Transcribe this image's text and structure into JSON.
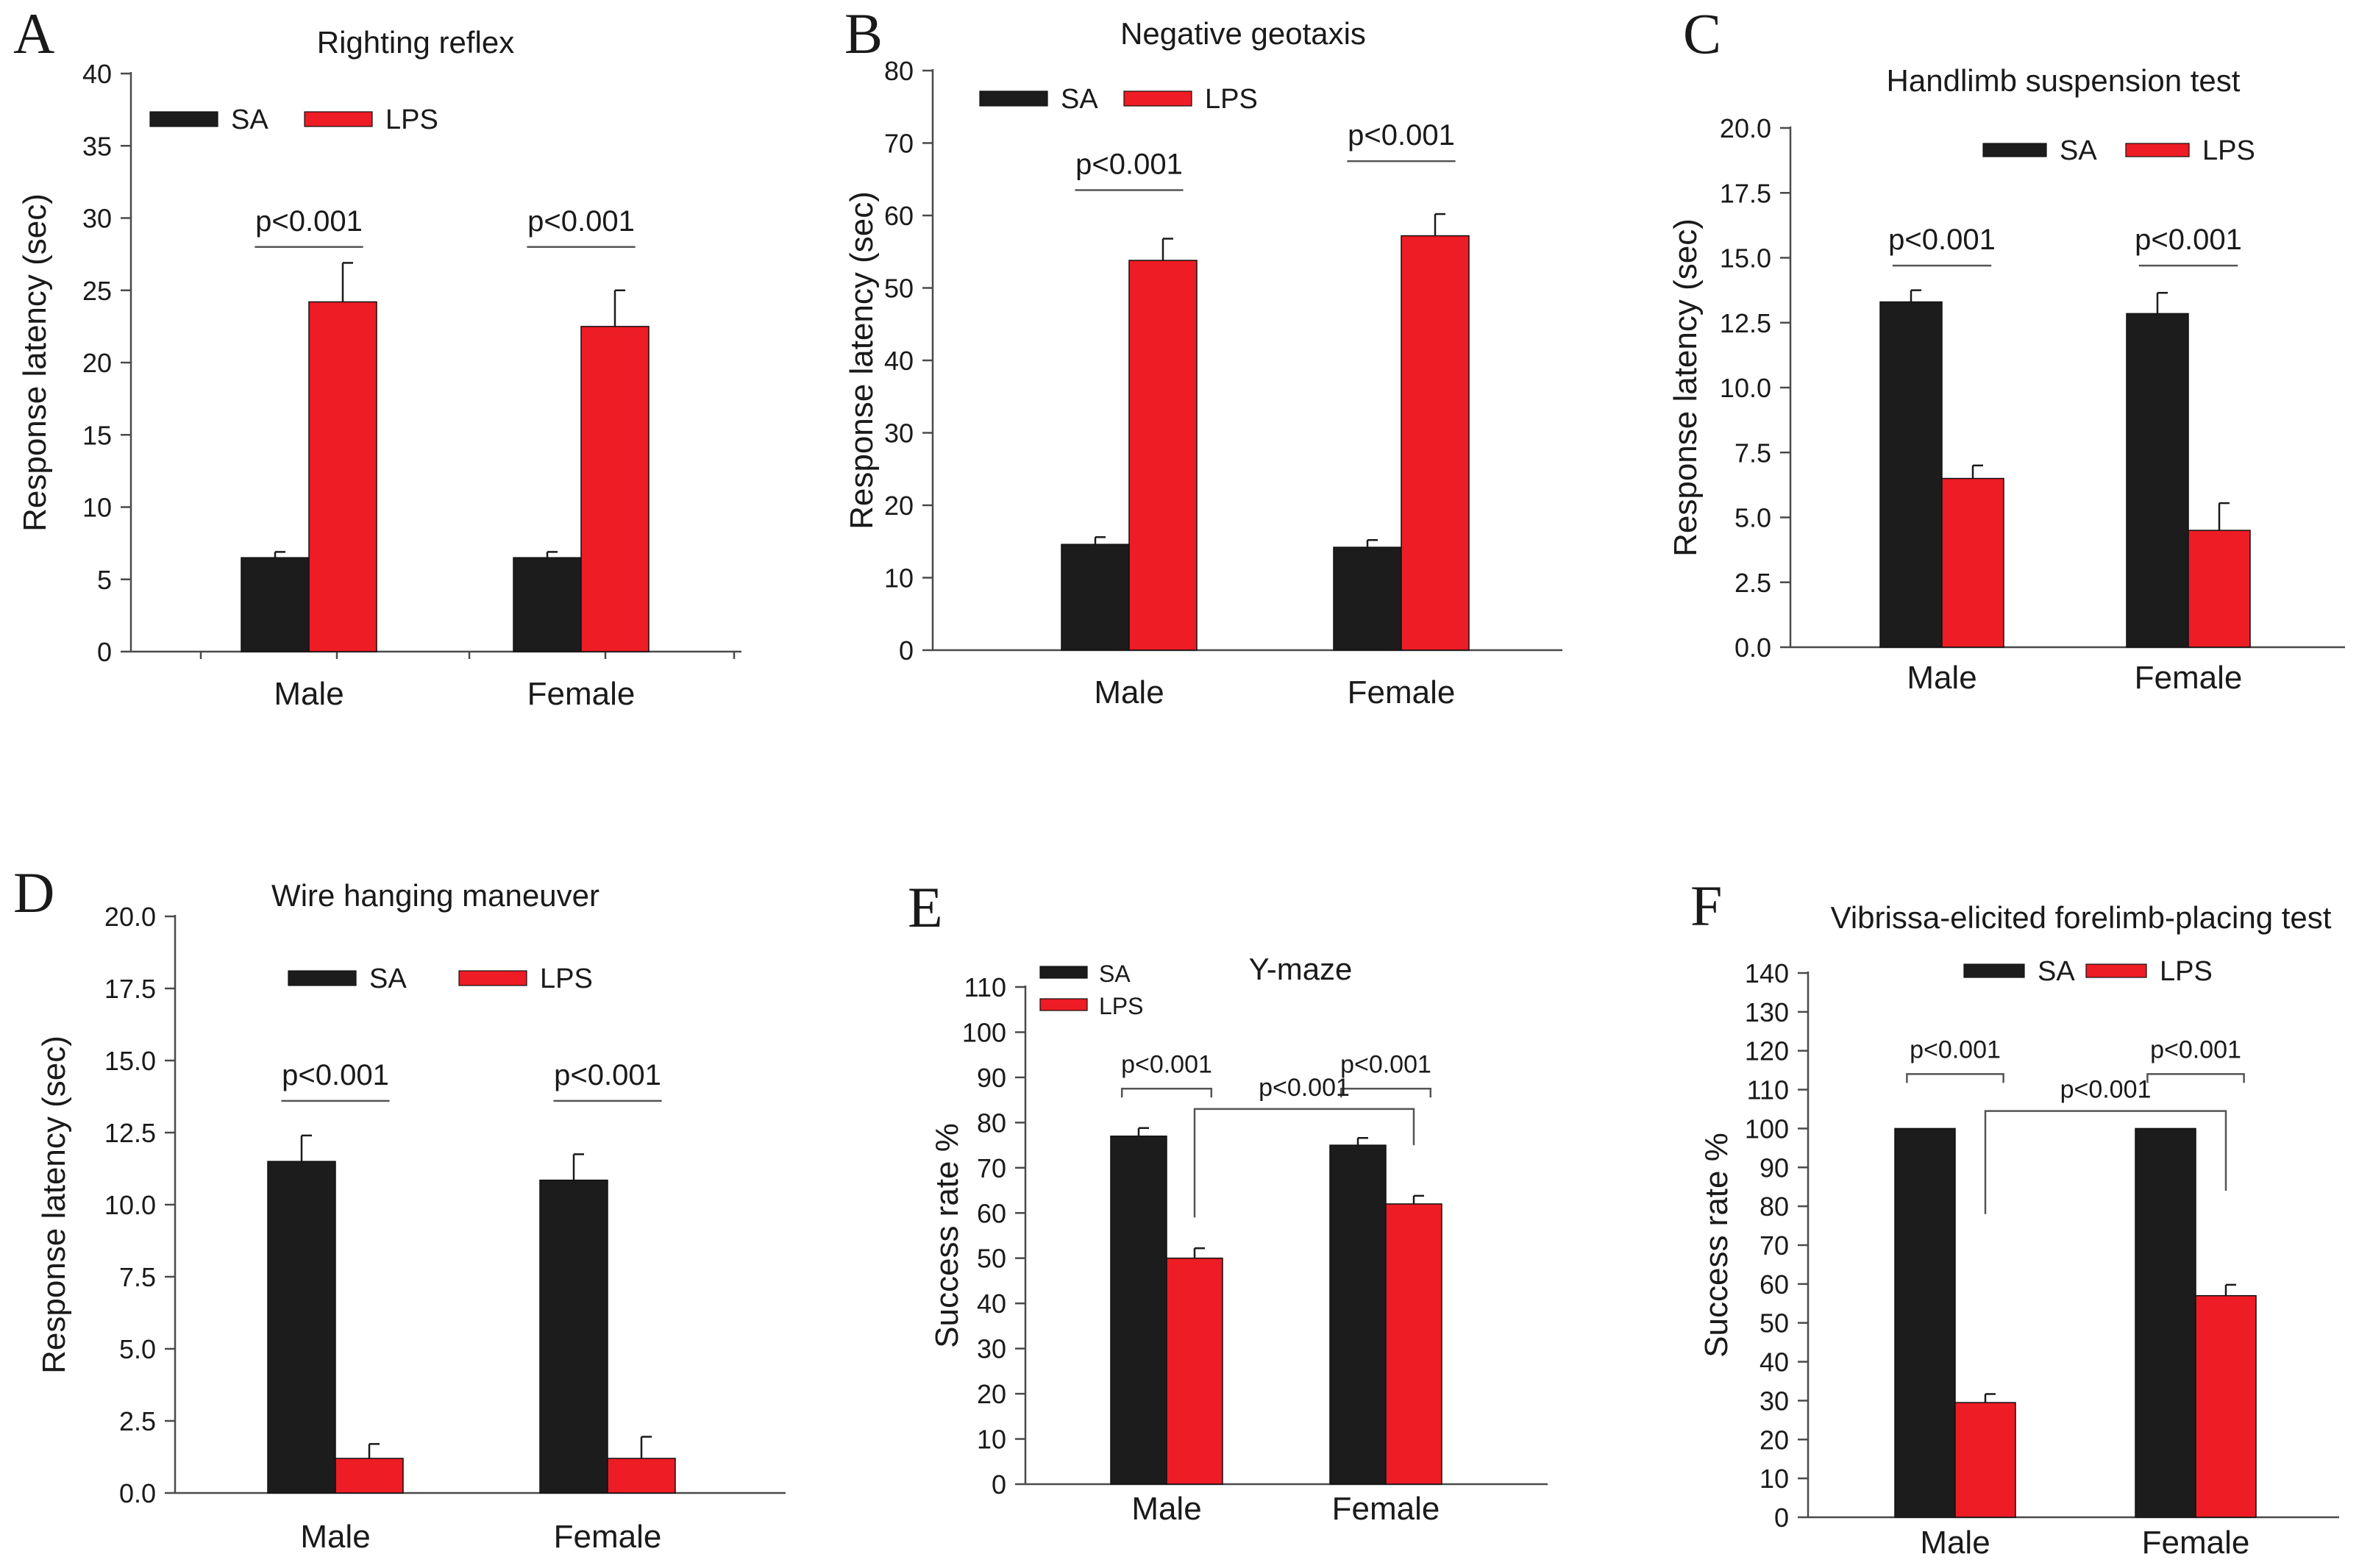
{
  "figure": {
    "colors": {
      "SA": "#1c1c1c",
      "LPS": "#ee1c24"
    }
  },
  "chart_data": [
    {
      "panel": "A",
      "type": "bar",
      "title": "Righting reflex",
      "xlabel": "",
      "ylabel": "Response latency (sec)",
      "categories": [
        "Male",
        "Female"
      ],
      "series": [
        {
          "name": "SA",
          "values": [
            6.5,
            6.5
          ],
          "errors": [
            0.4,
            0.4
          ]
        },
        {
          "name": "LPS",
          "values": [
            24.2,
            22.5
          ],
          "errors": [
            2.7,
            2.5
          ]
        }
      ],
      "ylim": [
        0,
        40
      ],
      "yticks": [
        0,
        5,
        10,
        15,
        20,
        25,
        30,
        35,
        40
      ],
      "ytick_labels": [
        "0",
        "5",
        "10",
        "15",
        "20",
        "25",
        "30",
        "35",
        "40"
      ],
      "legend": {
        "entries": [
          "SA",
          "LPS"
        ],
        "placement": "top-left"
      },
      "significance": [
        {
          "label": "p<0.001",
          "kind": "within",
          "group": 0,
          "y": 28
        },
        {
          "label": "p<0.001",
          "kind": "within",
          "group": 1,
          "y": 28
        }
      ]
    },
    {
      "panel": "B",
      "type": "bar",
      "title": "Negative geotaxis",
      "xlabel": "",
      "ylabel": "Response latency (sec)",
      "categories": [
        "Male",
        "Female"
      ],
      "series": [
        {
          "name": "SA",
          "values": [
            14.6,
            14.2
          ],
          "errors": [
            1.0,
            1.0
          ]
        },
        {
          "name": "LPS",
          "values": [
            53.8,
            57.2
          ],
          "errors": [
            3.0,
            3.0
          ]
        }
      ],
      "ylim": [
        0,
        80
      ],
      "yticks": [
        0,
        10,
        20,
        30,
        40,
        50,
        60,
        70,
        80
      ],
      "ytick_labels": [
        "0",
        "10",
        "20",
        "30",
        "40",
        "50",
        "60",
        "70",
        "80"
      ],
      "legend": {
        "entries": [
          "SA",
          "LPS"
        ],
        "placement": "top-left"
      },
      "significance": [
        {
          "label": "p<0.001",
          "kind": "within",
          "group": 0,
          "y": 63.5
        },
        {
          "label": "p<0.001",
          "kind": "within",
          "group": 1,
          "y": 67.5
        }
      ]
    },
    {
      "panel": "C",
      "type": "bar",
      "title": "Handlimb suspension test",
      "xlabel": "",
      "ylabel": "Response latency (sec)",
      "categories": [
        "Male",
        "Female"
      ],
      "series": [
        {
          "name": "SA",
          "values": [
            13.3,
            12.85
          ],
          "errors": [
            0.45,
            0.8
          ]
        },
        {
          "name": "LPS",
          "values": [
            6.5,
            4.5
          ],
          "errors": [
            0.5,
            1.05
          ]
        }
      ],
      "ylim": [
        0,
        20
      ],
      "yticks": [
        0,
        2.5,
        5,
        7.5,
        10,
        12.5,
        15,
        17.5,
        20
      ],
      "ytick_labels": [
        "0.0",
        "2.5",
        "5.0",
        "7.5",
        "10.0",
        "12.5",
        "15.0",
        "17.5",
        "20.0"
      ],
      "legend": {
        "entries": [
          "SA",
          "LPS"
        ],
        "placement": "top-right"
      },
      "significance": [
        {
          "label": "p<0.001",
          "kind": "within",
          "group": 0,
          "y": 14.7
        },
        {
          "label": "p<0.001",
          "kind": "within",
          "group": 1,
          "y": 14.7
        }
      ]
    },
    {
      "panel": "D",
      "type": "bar",
      "title": "Wire hanging maneuver",
      "xlabel": "",
      "ylabel": "Response latency (sec)",
      "categories": [
        "Male",
        "Female"
      ],
      "series": [
        {
          "name": "SA",
          "values": [
            11.5,
            10.85
          ],
          "errors": [
            0.9,
            0.9
          ]
        },
        {
          "name": "LPS",
          "values": [
            1.2,
            1.2
          ],
          "errors": [
            0.5,
            0.75
          ]
        }
      ],
      "ylim": [
        0,
        20
      ],
      "yticks": [
        0,
        2.5,
        5,
        7.5,
        10,
        12.5,
        15,
        17.5,
        20
      ],
      "ytick_labels": [
        "0.0",
        "2.5",
        "5.0",
        "7.5",
        "10.0",
        "12.5",
        "15.0",
        "17.5",
        "20.0"
      ],
      "legend": {
        "entries": [
          "SA",
          "LPS"
        ],
        "placement": "top-center"
      },
      "significance": [
        {
          "label": "p<0.001",
          "kind": "within",
          "group": 0,
          "y": 13.6
        },
        {
          "label": "p<0.001",
          "kind": "within",
          "group": 1,
          "y": 13.6
        }
      ]
    },
    {
      "panel": "E",
      "type": "bar",
      "title": "Y-maze",
      "xlabel": "",
      "ylabel": "Success rate %",
      "categories": [
        "Male",
        "Female"
      ],
      "series": [
        {
          "name": "SA",
          "values": [
            77,
            75
          ],
          "errors": [
            1.8,
            1.6
          ]
        },
        {
          "name": "LPS",
          "values": [
            50,
            62
          ],
          "errors": [
            2.2,
            1.8
          ]
        }
      ],
      "ylim": [
        0,
        110
      ],
      "yticks": [
        0,
        10,
        20,
        30,
        40,
        50,
        60,
        70,
        80,
        90,
        100,
        110
      ],
      "ytick_labels": [
        "0",
        "10",
        "20",
        "30",
        "40",
        "50",
        "60",
        "70",
        "80",
        "90",
        "100",
        "110"
      ],
      "legend": {
        "entries": [
          "SA",
          "LPS"
        ],
        "placement": "top-left"
      },
      "significance": [
        {
          "label": "p<0.001",
          "kind": "within",
          "group": 0,
          "y": 87.5
        },
        {
          "label": "p<0.001",
          "kind": "within",
          "group": 1,
          "y": 87.5
        },
        {
          "label": "p<0.001",
          "kind": "between",
          "y": 83,
          "from_y": 59,
          "to_y": 75
        }
      ]
    },
    {
      "panel": "F",
      "type": "bar",
      "title": "Vibrissa-elicited forelimb-placing test",
      "xlabel": "",
      "ylabel": "Success rate %",
      "categories": [
        "Male",
        "Female"
      ],
      "series": [
        {
          "name": "SA",
          "values": [
            100,
            100
          ],
          "errors": [
            0,
            0
          ]
        },
        {
          "name": "LPS",
          "values": [
            29.5,
            57
          ],
          "errors": [
            2.2,
            2.8
          ]
        }
      ],
      "ylim": [
        0,
        140
      ],
      "yticks": [
        0,
        10,
        20,
        30,
        40,
        50,
        60,
        70,
        80,
        90,
        100,
        110,
        120,
        130,
        140
      ],
      "ytick_labels": [
        "0",
        "10",
        "20",
        "30",
        "40",
        "50",
        "60",
        "70",
        "80",
        "90",
        "100",
        "110",
        "120",
        "130",
        "140"
      ],
      "legend": {
        "entries": [
          "SA",
          "LPS"
        ],
        "placement": "top-center"
      },
      "significance": [
        {
          "label": "p<0.001",
          "kind": "within",
          "group": 0,
          "y": 114
        },
        {
          "label": "p<0.001",
          "kind": "within",
          "group": 1,
          "y": 114
        },
        {
          "label": "p<0.001",
          "kind": "between",
          "y": 104.5,
          "from_y": 78,
          "to_y": 84
        }
      ]
    }
  ]
}
